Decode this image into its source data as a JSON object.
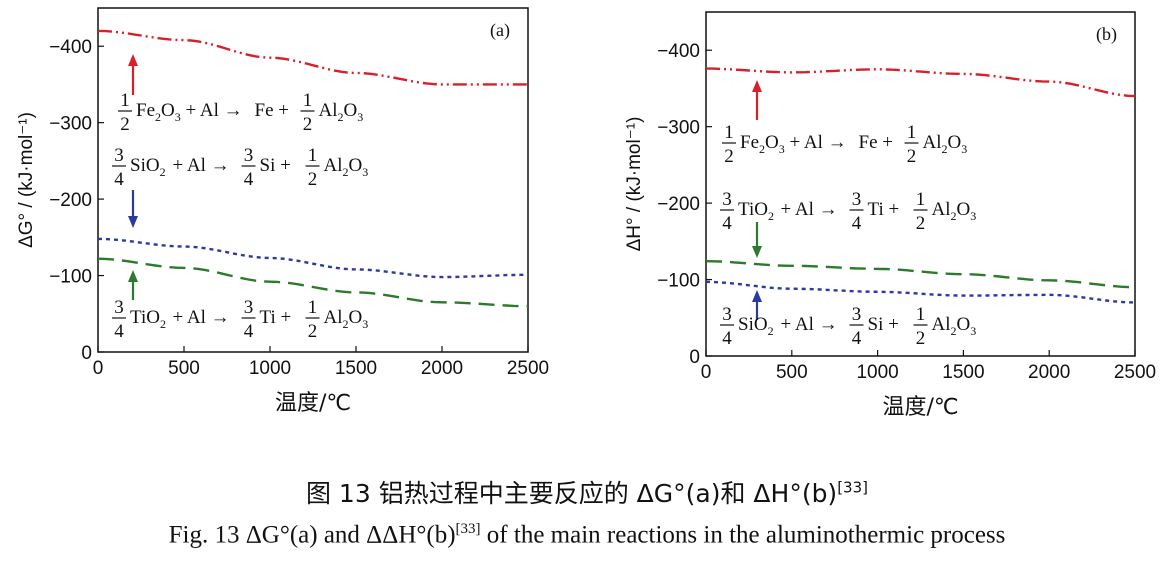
{
  "chart_data": [
    {
      "type": "line",
      "panel_label": "(a)",
      "xlabel": "温度/℃",
      "ylabel": "ΔG° / (kJ·mol⁻¹)",
      "xlim": [
        0,
        2500
      ],
      "ylim": [
        0,
        -450
      ],
      "xticks": [
        0,
        500,
        1000,
        1500,
        2000,
        2500
      ],
      "yticks": [
        0,
        -100,
        -200,
        -300,
        -400
      ],
      "x": [
        0,
        500,
        1000,
        1500,
        2000,
        2500
      ],
      "series": [
        {
          "name": "Fe2O3",
          "color": "#d8202a",
          "dash": "dashdot",
          "values": [
            -420,
            -408,
            -385,
            -365,
            -350,
            -350
          ]
        },
        {
          "name": "SiO2",
          "color": "#2b3a9e",
          "dash": "dot",
          "values": [
            -148,
            -138,
            -123,
            -108,
            -98,
            -101
          ]
        },
        {
          "name": "TiO2",
          "color": "#2c7a2c",
          "dash": "dash",
          "values": [
            -122,
            -110,
            -92,
            -78,
            -65,
            -60
          ]
        }
      ],
      "equations": [
        {
          "c1n": "1",
          "c1d": "2",
          "r1": "Fe",
          "r1s": "2",
          "r1m": "O",
          "r1s2": "3",
          "mid": "+ Al →",
          "p1": "Fe",
          "c2n": "1",
          "c2d": "2",
          "p2": "Al",
          "p2s": "2",
          "p2m": "O",
          "p2s2": "3",
          "prefix_coef": true
        },
        {
          "c1n": "3",
          "c1d": "4",
          "r1": "SiO",
          "r1s": "2",
          "mid": "+ Al →",
          "c3n": "3",
          "c3d": "4",
          "p1": "Si",
          "c2n": "1",
          "c2d": "2",
          "p2": "Al",
          "p2s": "2",
          "p2m": "O",
          "p2s2": "3"
        },
        {
          "c1n": "3",
          "c1d": "4",
          "r1": "TiO",
          "r1s": "2",
          "mid": "+ Al →",
          "c3n": "3",
          "c3d": "4",
          "p1": "Ti",
          "c2n": "1",
          "c2d": "2",
          "p2": "Al",
          "p2s": "2",
          "p2m": "O",
          "p2s2": "3"
        }
      ]
    },
    {
      "type": "line",
      "panel_label": "(b)",
      "xlabel": "温度/℃",
      "ylabel": "ΔH° / (kJ·mol⁻¹)",
      "xlim": [
        0,
        2500
      ],
      "ylim": [
        0,
        -450
      ],
      "xticks": [
        0,
        500,
        1000,
        1500,
        2000,
        2500
      ],
      "yticks": [
        0,
        -100,
        -200,
        -300,
        -400
      ],
      "x": [
        0,
        500,
        1000,
        1500,
        2000,
        2500
      ],
      "series": [
        {
          "name": "Fe2O3",
          "color": "#d8202a",
          "dash": "dashdot",
          "values": [
            -376,
            -371,
            -375,
            -369,
            -359,
            -340
          ]
        },
        {
          "name": "TiO2",
          "color": "#2c7a2c",
          "dash": "dash",
          "values": [
            -124,
            -118,
            -114,
            -107,
            -99,
            -90
          ]
        },
        {
          "name": "SiO2",
          "color": "#2b3a9e",
          "dash": "dot",
          "values": [
            -97,
            -88,
            -84,
            -79,
            -80,
            -70
          ]
        }
      ],
      "equations": [
        {
          "c1n": "1",
          "c1d": "2",
          "r1": "Fe",
          "r1s": "2",
          "r1m": "O",
          "r1s2": "3",
          "mid": "+ Al →",
          "p1": "Fe",
          "c2n": "1",
          "c2d": "2",
          "p2": "Al",
          "p2s": "2",
          "p2m": "O",
          "p2s2": "3"
        },
        {
          "c1n": "3",
          "c1d": "4",
          "r1": "TiO",
          "r1s": "2",
          "mid": "+ Al →",
          "c3n": "3",
          "c3d": "4",
          "p1": "Ti",
          "c2n": "1",
          "c2d": "2",
          "p2": "Al",
          "p2s": "2",
          "p2m": "O",
          "p2s2": "3"
        },
        {
          "c1n": "3",
          "c1d": "4",
          "r1": "SiO",
          "r1s": "2",
          "mid": "+ Al →",
          "c3n": "3",
          "c3d": "4",
          "p1": "Si",
          "c2n": "1",
          "c2d": "2",
          "p2": "Al",
          "p2s": "2",
          "p2m": "O",
          "p2s2": "3"
        }
      ]
    }
  ],
  "caption": {
    "cn_prefix": "图 13  铝热过程中主要反应的 ΔG",
    "cn_mid1": "(a)和 ΔH",
    "cn_mid2": "(b)",
    "cn_ref": "[33]",
    "en_prefix": "Fig. 13 ΔG",
    "en_mid1": "(a) and ΔΔH",
    "en_mid2": "(b)",
    "en_ref": "[33]",
    "en_suffix": " of the main reactions in the aluminothermic process",
    "degree": "°"
  }
}
